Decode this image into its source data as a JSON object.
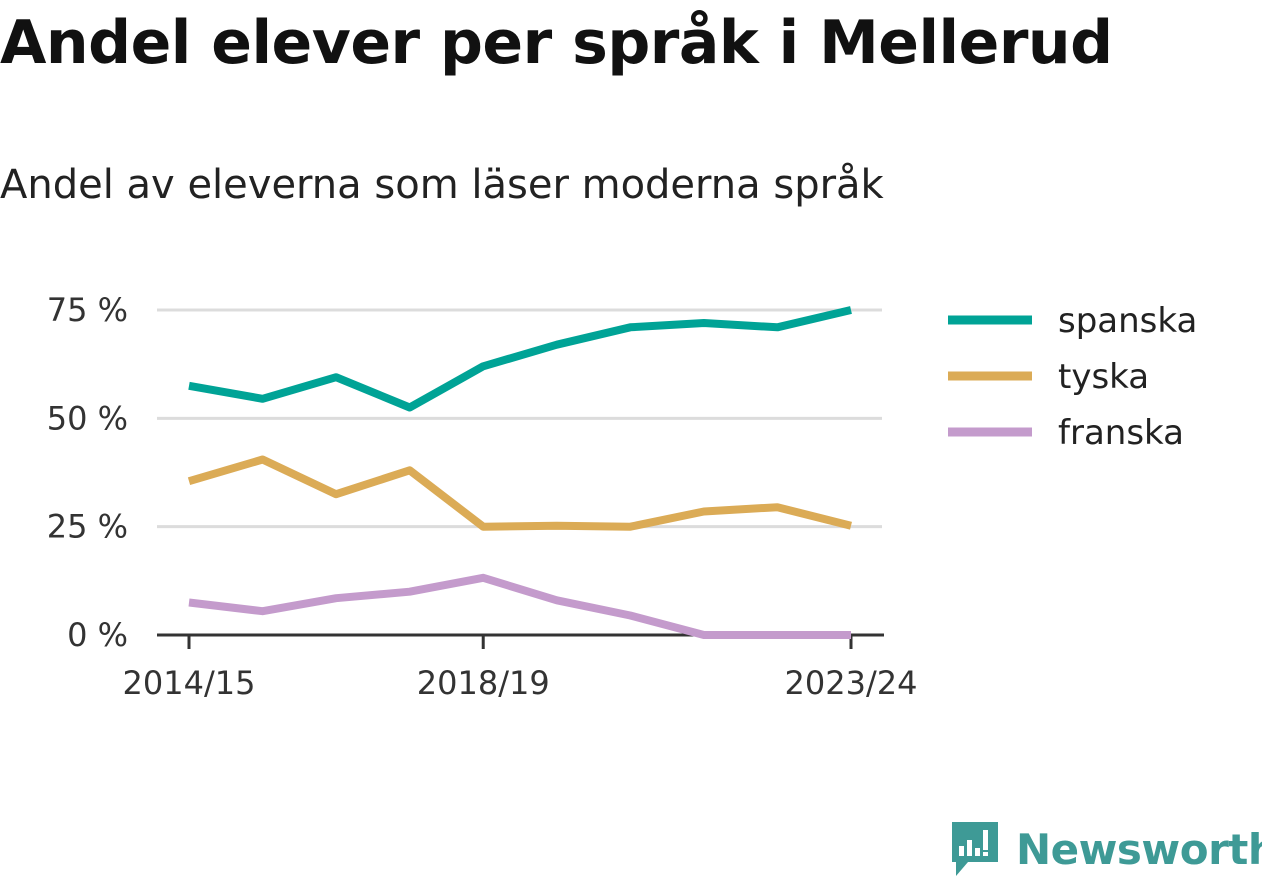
{
  "title": "Andel elever per språk i Mellerud",
  "subtitle": "Andel av eleverna som läser moderna språk",
  "brand": {
    "name": "Newsworthy",
    "icon": "newsworthy-logo-icon",
    "color": "#3e9a96"
  },
  "chart_data": {
    "type": "line",
    "title": "Andel elever per språk i Mellerud",
    "subtitle": "Andel av eleverna som läser moderna språk",
    "x": [
      "2014/15",
      "2015/16",
      "2016/17",
      "2017/18",
      "2018/19",
      "2019/20",
      "2020/21",
      "2021/22",
      "2022/23",
      "2023/24"
    ],
    "x_tick_labels": [
      "2014/15",
      "2018/19",
      "2023/24"
    ],
    "y_ticks": [
      0,
      25,
      50,
      75
    ],
    "y_tick_labels": [
      "0 %",
      "25 %",
      "50 %",
      "75 %"
    ],
    "ylim": [
      0,
      75
    ],
    "unit": "%",
    "grid": true,
    "legend_position": "right",
    "series": [
      {
        "name": "spanska",
        "color": "#00a396",
        "values": [
          57.5,
          54.5,
          59.5,
          52.5,
          62,
          67,
          71,
          72,
          71,
          75
        ]
      },
      {
        "name": "tyska",
        "color": "#dbab56",
        "values": [
          35.5,
          40.5,
          32.5,
          38,
          25,
          25.2,
          25,
          28.5,
          29.5,
          25.2
        ]
      },
      {
        "name": "franska",
        "color": "#c49bcc",
        "values": [
          7.5,
          5.5,
          8.5,
          10,
          13.2,
          8,
          4.5,
          0,
          0,
          0
        ]
      }
    ]
  }
}
